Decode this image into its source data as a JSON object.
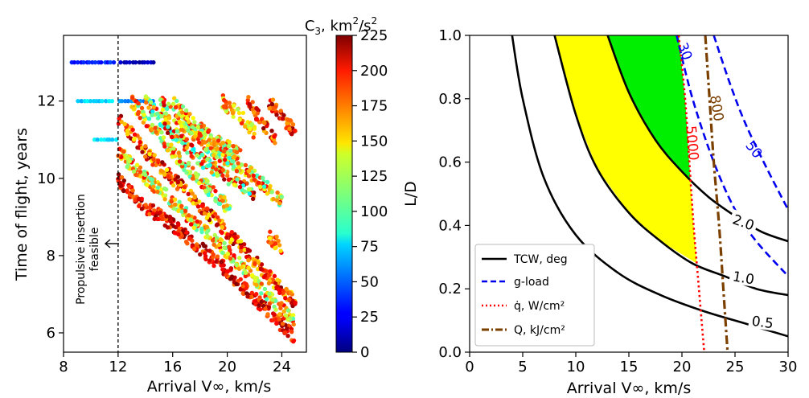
{
  "chart_data": [
    {
      "type": "scatter",
      "title": "",
      "xlabel": "Arrival V∞, km/s",
      "ylabel": "Time of flight, years",
      "xlim": [
        8,
        25.8
      ],
      "ylim": [
        5.5,
        13.7
      ],
      "xticks": [
        "8",
        "12",
        "16",
        "20",
        "24"
      ],
      "yticks": [
        "6",
        "8",
        "10",
        "12"
      ],
      "colorbar": {
        "label": "C3, km²/s²",
        "range": [
          0,
          225
        ],
        "ticks": [
          "0",
          "25",
          "50",
          "75",
          "100",
          "125",
          "150",
          "175",
          "200",
          "225"
        ],
        "colormap": "jet"
      },
      "annotation": {
        "text_lines": [
          "Propulsive insertion",
          "feasible"
        ],
        "vline_x": 12
      },
      "series": [
        {
          "kind": "row",
          "x_range": [
            8.6,
            11.9
          ],
          "y": 13.0,
          "c3": 35
        },
        {
          "kind": "row",
          "x_range": [
            12.2,
            14.7
          ],
          "y": 13.0,
          "c3": 15
        },
        {
          "kind": "row",
          "x_range": [
            9.1,
            11.6
          ],
          "y": 12.0,
          "c3": 75
        },
        {
          "kind": "row",
          "x_range": [
            12.1,
            14.6
          ],
          "y": 12.0,
          "c3": 60
        },
        {
          "kind": "row",
          "x_range": [
            10.3,
            11.9
          ],
          "y": 11.0,
          "c3": 80
        },
        {
          "kind": "band",
          "x": [
            12.0,
            13.5,
            16.0,
            20.0,
            24.0,
            25.0
          ],
          "y": [
            10.0,
            9.4,
            8.8,
            7.6,
            6.2,
            5.9
          ],
          "c3_range": [
            170,
            225
          ]
        },
        {
          "kind": "band",
          "x": [
            12.0,
            14.0,
            16.0,
            20.0,
            24.0,
            25.0
          ],
          "y": [
            10.7,
            10.0,
            9.4,
            8.1,
            6.6,
            6.3
          ],
          "c3_range": [
            100,
            200
          ]
        },
        {
          "kind": "band",
          "x": [
            12.0,
            14.0,
            16.0,
            20.0,
            24.0,
            25.0
          ],
          "y": [
            11.6,
            10.7,
            10.0,
            8.6,
            7.1,
            6.8
          ],
          "c3_range": [
            140,
            225
          ]
        },
        {
          "kind": "band",
          "x": [
            13.0,
            15.0,
            17.0,
            19.0,
            20.2
          ],
          "y": [
            12.0,
            11.1,
            10.3,
            9.6,
            9.2
          ],
          "c3_range": [
            90,
            200
          ]
        },
        {
          "kind": "band",
          "x": [
            14.0,
            16.0,
            18.0,
            21.0,
            22.0
          ],
          "y": [
            12.0,
            11.2,
            10.5,
            9.8,
            9.6
          ],
          "c3_range": [
            80,
            220
          ]
        },
        {
          "kind": "band",
          "x": [
            15.0,
            17.0,
            19.0,
            21.5,
            24.0
          ],
          "y": [
            12.0,
            11.3,
            10.7,
            10.2,
            9.4
          ],
          "c3_range": [
            90,
            210
          ]
        },
        {
          "kind": "band",
          "x": [
            16.0,
            17.5,
            19.0,
            21.0
          ],
          "y": [
            12.0,
            11.4,
            11.0,
            10.6
          ],
          "c3_range": [
            100,
            200
          ]
        },
        {
          "kind": "band",
          "x": [
            19.6,
            21.0,
            22.0
          ],
          "y": [
            12.0,
            11.6,
            11.2
          ],
          "c3_range": [
            120,
            190
          ]
        },
        {
          "kind": "band",
          "x": [
            21.5,
            22.5,
            23.5
          ],
          "y": [
            12.0,
            11.5,
            11.0
          ],
          "c3_range": [
            150,
            225
          ]
        },
        {
          "kind": "band",
          "x": [
            23.0,
            24.0,
            25.0
          ],
          "y": [
            12.0,
            11.6,
            11.2
          ],
          "c3_range": [
            160,
            225
          ]
        },
        {
          "kind": "band",
          "x": [
            23.0,
            24.0
          ],
          "y": [
            8.5,
            8.2
          ],
          "c3_range": [
            140,
            200
          ]
        }
      ]
    },
    {
      "type": "line",
      "title": "",
      "xlabel": "Arrival V∞, km/s",
      "ylabel": "L/D",
      "xlim": [
        0,
        30
      ],
      "ylim": [
        0,
        1.0
      ],
      "xticks": [
        "0",
        "5",
        "10",
        "15",
        "20",
        "25",
        "30"
      ],
      "yticks": [
        "0.0",
        "0.2",
        "0.4",
        "0.6",
        "0.8",
        "1.0"
      ],
      "legend": {
        "position": "lower-left",
        "entries": [
          "TCW, deg",
          "g-load",
          "q̇, W/cm²",
          "Q, kJ/cm²"
        ]
      },
      "series": [
        {
          "name": "TCW, deg",
          "label": "0.5",
          "color": "#000000",
          "style": "solid",
          "points": [
            [
              4.0,
              1.0
            ],
            [
              5.0,
              0.8
            ],
            [
              7.0,
              0.55
            ],
            [
              10.0,
              0.37
            ],
            [
              14.0,
              0.25
            ],
            [
              18.0,
              0.18
            ],
            [
              22.0,
              0.13
            ],
            [
              26.0,
              0.09
            ],
            [
              30.0,
              0.05
            ]
          ]
        },
        {
          "name": "TCW, deg",
          "label": "1.0",
          "color": "#000000",
          "style": "solid",
          "points": [
            [
              8.0,
              1.0
            ],
            [
              10.0,
              0.75
            ],
            [
              12.0,
              0.58
            ],
            [
              15.0,
              0.44
            ],
            [
              18.0,
              0.35
            ],
            [
              21.0,
              0.28
            ],
            [
              24.0,
              0.24
            ],
            [
              27.0,
              0.2
            ],
            [
              30.0,
              0.18
            ]
          ]
        },
        {
          "name": "TCW, deg",
          "label": "2.0",
          "color": "#000000",
          "style": "solid",
          "points": [
            [
              13.0,
              1.0
            ],
            [
              15.0,
              0.82
            ],
            [
              17.5,
              0.67
            ],
            [
              20.0,
              0.57
            ],
            [
              22.5,
              0.49
            ],
            [
              25.0,
              0.43
            ],
            [
              27.5,
              0.38
            ],
            [
              30.0,
              0.35
            ]
          ]
        },
        {
          "name": "g-load",
          "label": "30",
          "color": "#0000ee",
          "style": "dashed",
          "points": [
            [
              19.5,
              1.0
            ],
            [
              21.0,
              0.8
            ],
            [
              23.0,
              0.6
            ],
            [
              25.0,
              0.45
            ],
            [
              27.0,
              0.35
            ],
            [
              30.0,
              0.24
            ]
          ]
        },
        {
          "name": "g-load",
          "label": "50",
          "color": "#0000ee",
          "style": "dashed",
          "points": [
            [
              23.0,
              1.0
            ],
            [
              24.5,
              0.85
            ],
            [
              26.0,
              0.72
            ],
            [
              28.0,
              0.58
            ],
            [
              30.0,
              0.45
            ]
          ]
        },
        {
          "name": "q̇, W/cm²",
          "label": "5000",
          "color": "#ff0000",
          "style": "dotted",
          "points": [
            [
              19.7,
              1.0
            ],
            [
              20.3,
              0.8
            ],
            [
              20.7,
              0.6
            ],
            [
              21.1,
              0.4
            ],
            [
              21.6,
              0.2
            ],
            [
              22.1,
              0.0
            ]
          ]
        },
        {
          "name": "Q, kJ/cm²",
          "label": "800",
          "color": "#7b3f00",
          "style": "dashdot",
          "points": [
            [
              22.2,
              1.0
            ],
            [
              22.6,
              0.8
            ],
            [
              23.0,
              0.6
            ],
            [
              23.5,
              0.4
            ],
            [
              23.9,
              0.2
            ],
            [
              24.3,
              0.0
            ]
          ]
        }
      ],
      "regions": [
        {
          "name": "feasible-yellow",
          "color": "#ffff00",
          "points": [
            [
              8.0,
              1.0
            ],
            [
              13.0,
              1.0
            ],
            [
              15.0,
              0.82
            ],
            [
              17.5,
              0.67
            ],
            [
              20.0,
              0.57
            ],
            [
              20.8,
              0.54
            ],
            [
              21.1,
              0.4
            ],
            [
              21.4,
              0.28
            ],
            [
              18.0,
              0.35
            ],
            [
              15.0,
              0.44
            ],
            [
              12.0,
              0.58
            ],
            [
              10.0,
              0.75
            ]
          ]
        },
        {
          "name": "feasible-green",
          "color": "#00ee00",
          "points": [
            [
              13.0,
              1.0
            ],
            [
              19.7,
              1.0
            ],
            [
              20.3,
              0.8
            ],
            [
              20.8,
              0.54
            ],
            [
              20.0,
              0.57
            ],
            [
              17.5,
              0.67
            ],
            [
              15.0,
              0.82
            ]
          ]
        }
      ]
    }
  ]
}
